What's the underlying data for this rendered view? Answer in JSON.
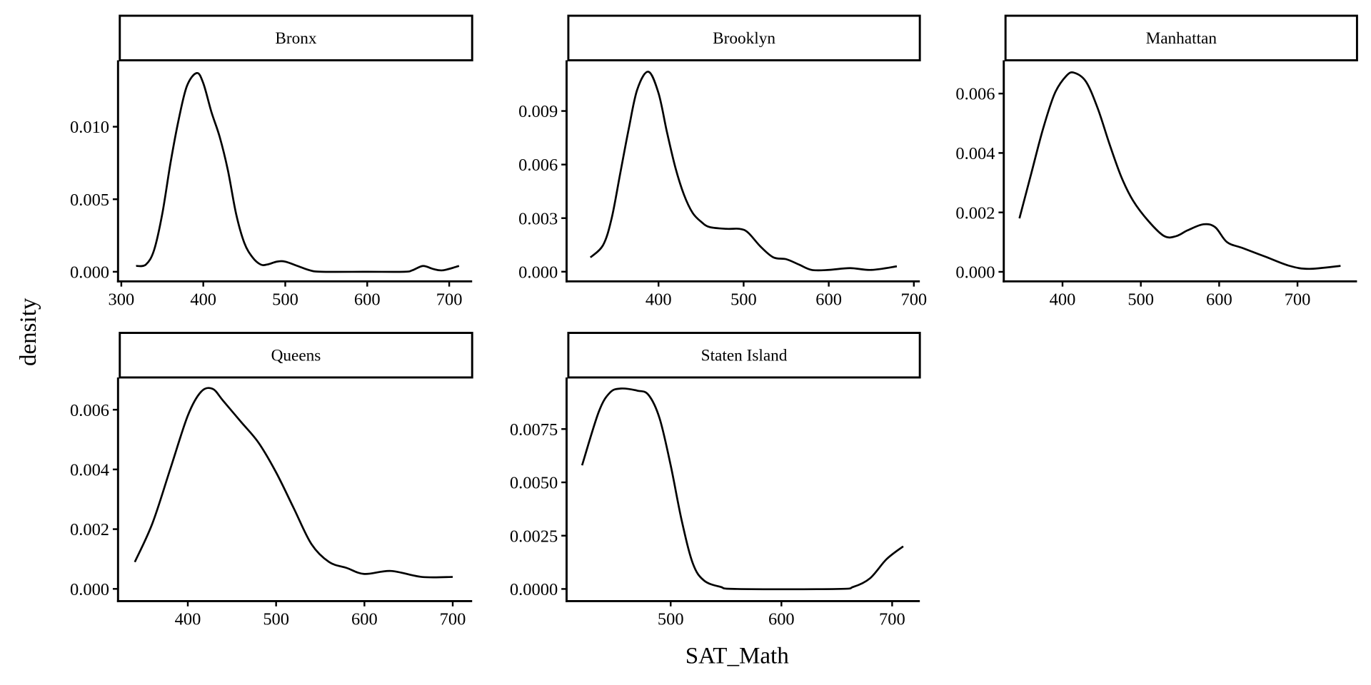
{
  "chart_data": {
    "type": "line",
    "subtype": "faceted density",
    "xlabel": "SAT_Math",
    "ylabel": "density",
    "grid": false,
    "panels": [
      {
        "title": "Bronx",
        "xlim": [
          296,
          728
        ],
        "ylim": [
          -0.00066,
          0.01458
        ],
        "xticks": [
          300,
          400,
          500,
          600,
          700
        ],
        "xtick_labels": [
          "300",
          "400",
          "500",
          "600",
          "700"
        ],
        "yticks": [
          0,
          0.005,
          0.01
        ],
        "ytick_labels": [
          "0.000",
          "0.005",
          "0.010"
        ],
        "x": [
          318,
          330,
          340,
          350,
          360,
          370,
          380,
          392,
          400,
          410,
          420,
          430,
          440,
          450,
          460,
          470,
          478,
          490,
          500,
          515,
          530,
          545,
          600,
          645,
          655,
          668,
          680,
          692,
          712
        ],
        "y": [
          0.0004,
          0.0005,
          0.0015,
          0.004,
          0.0075,
          0.0105,
          0.0128,
          0.0137,
          0.013,
          0.011,
          0.0093,
          0.007,
          0.004,
          0.002,
          0.001,
          0.0005,
          0.0005,
          0.0007,
          0.0007,
          0.0004,
          0.0001,
          0,
          0,
          0,
          0.0001,
          0.0004,
          0.0002,
          0.0001,
          0.0004
        ]
      },
      {
        "title": "Brooklyn",
        "xlim": [
          292,
          707
        ],
        "ylim": [
          -0.00054,
          0.01184
        ],
        "xticks": [
          400,
          500,
          600,
          700
        ],
        "xtick_labels": [
          "400",
          "500",
          "600",
          "700"
        ],
        "yticks": [
          0,
          0.003,
          0.006,
          0.009
        ],
        "ytick_labels": [
          "0.000",
          "0.003",
          "0.006",
          "0.009"
        ],
        "x": [
          320,
          335,
          345,
          355,
          365,
          375,
          388,
          400,
          410,
          420,
          430,
          440,
          450,
          460,
          480,
          495,
          505,
          520,
          535,
          550,
          565,
          580,
          600,
          625,
          650,
          680
        ],
        "y": [
          0.0008,
          0.0015,
          0.003,
          0.0055,
          0.008,
          0.0102,
          0.0112,
          0.01,
          0.0078,
          0.0058,
          0.0043,
          0.0033,
          0.0028,
          0.0025,
          0.0024,
          0.0024,
          0.0022,
          0.0014,
          0.0008,
          0.0007,
          0.0004,
          0.0001,
          0.0001,
          0.0002,
          0.0001,
          0.0003
        ]
      },
      {
        "title": "Manhattan",
        "xlim": [
          325,
          776
        ],
        "ylim": [
          -0.00032,
          0.00712
        ],
        "xticks": [
          400,
          500,
          600,
          700
        ],
        "xtick_labels": [
          "400",
          "500",
          "600",
          "700"
        ],
        "yticks": [
          0,
          0.002,
          0.004,
          0.006
        ],
        "ytick_labels": [
          "0.000",
          "0.002",
          "0.004",
          "0.006"
        ],
        "x": [
          345,
          360,
          375,
          390,
          405,
          415,
          430,
          445,
          460,
          475,
          490,
          510,
          530,
          545,
          560,
          580,
          595,
          610,
          630,
          660,
          690,
          715,
          755
        ],
        "y": [
          0.0018,
          0.0033,
          0.0048,
          0.006,
          0.0066,
          0.0067,
          0.0064,
          0.0055,
          0.0043,
          0.0032,
          0.0024,
          0.0017,
          0.0012,
          0.0012,
          0.0014,
          0.0016,
          0.0015,
          0.001,
          0.0008,
          0.0005,
          0.0002,
          0.0001,
          0.0002
        ]
      },
      {
        "title": "Queens",
        "xlim": [
          321,
          722
        ],
        "ylim": [
          -0.00041,
          0.00708
        ],
        "xticks": [
          400,
          500,
          600,
          700
        ],
        "xtick_labels": [
          "400",
          "500",
          "600",
          "700"
        ],
        "yticks": [
          0,
          0.002,
          0.004,
          0.006
        ],
        "ytick_labels": [
          "0.000",
          "0.002",
          "0.004",
          "0.006"
        ],
        "x": [
          340,
          360,
          380,
          400,
          415,
          428,
          440,
          460,
          480,
          500,
          520,
          540,
          560,
          580,
          600,
          630,
          665,
          700
        ],
        "y": [
          0.0009,
          0.0022,
          0.004,
          0.0058,
          0.0066,
          0.0067,
          0.0063,
          0.0056,
          0.0049,
          0.0039,
          0.0027,
          0.0015,
          0.0009,
          0.0007,
          0.0005,
          0.0006,
          0.0004,
          0.0004
        ]
      },
      {
        "title": "Staten Island",
        "xlim": [
          406,
          725
        ],
        "ylim": [
          -0.00057,
          0.00992
        ],
        "xticks": [
          500,
          600,
          700
        ],
        "xtick_labels": [
          "500",
          "600",
          "700"
        ],
        "yticks": [
          0,
          0.0025,
          0.005,
          0.0075
        ],
        "ytick_labels": [
          "0.0000",
          "0.0025",
          "0.0050",
          "0.0075"
        ],
        "x": [
          420,
          435,
          445,
          455,
          470,
          480,
          490,
          500,
          510,
          520,
          530,
          545,
          560,
          650,
          665,
          680,
          695,
          710
        ],
        "y": [
          0.0058,
          0.0083,
          0.0092,
          0.0094,
          0.0093,
          0.0091,
          0.008,
          0.0058,
          0.0032,
          0.0012,
          0.0004,
          0.0001,
          0,
          0,
          0.0001,
          0.0005,
          0.0014,
          0.002
        ]
      }
    ]
  }
}
